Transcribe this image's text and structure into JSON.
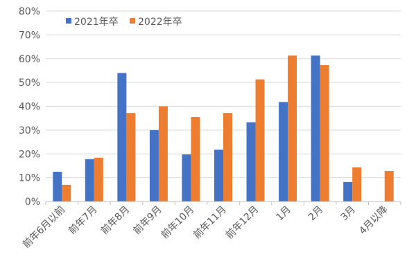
{
  "chart_data": {
    "type": "bar",
    "categories": [
      "前年6月以前",
      "前年7月",
      "前年8月",
      "前年9月",
      "前年10月",
      "前年11月",
      "前年12月",
      "1月",
      "2月",
      "3月",
      "4月以降"
    ],
    "series": [
      {
        "name": "2021年卒",
        "color": "#4472C4",
        "values": [
          12.5,
          17.8,
          54.0,
          30.0,
          19.8,
          21.8,
          33.3,
          41.8,
          61.3,
          8.2,
          null
        ]
      },
      {
        "name": "2022年卒",
        "color": "#ED7D31",
        "values": [
          7.0,
          18.4,
          37.2,
          40.0,
          35.5,
          37.2,
          51.3,
          61.3,
          57.3,
          14.4,
          12.8
        ]
      }
    ],
    "title": "",
    "xlabel": "",
    "ylabel": "",
    "ylim": [
      0,
      80
    ],
    "yticks": [
      "0%",
      "10%",
      "20%",
      "30%",
      "40%",
      "50%",
      "60%",
      "70%",
      "80%"
    ],
    "grid": true,
    "legend": "top-left"
  }
}
